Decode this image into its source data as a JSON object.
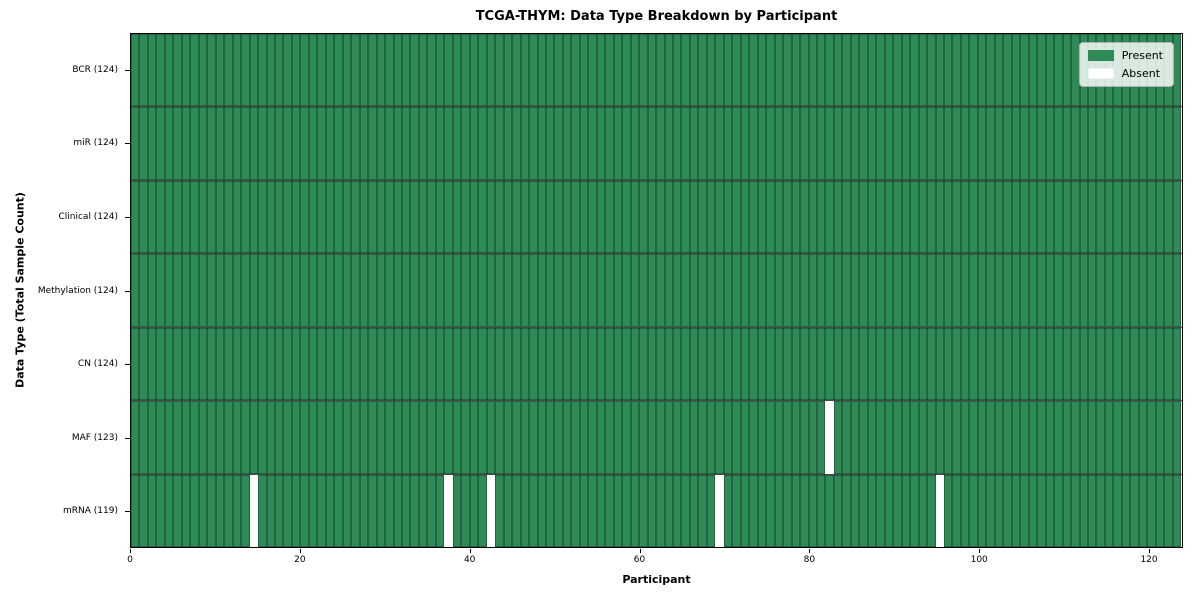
{
  "chart_data": {
    "type": "heatmap",
    "title": "TCGA-THYM: Data Type Breakdown by Participant",
    "xlabel": "Participant",
    "ylabel": "Data Type (Total Sample Count)",
    "x_range": [
      0,
      124
    ],
    "x_ticks": [
      0,
      20,
      40,
      60,
      80,
      100,
      120
    ],
    "n_participants": 124,
    "grid": true,
    "rows": [
      {
        "data_type": "BCR",
        "label": "BCR (124)",
        "total_samples": 124,
        "absent_participants": []
      },
      {
        "data_type": "miR",
        "label": "miR (124)",
        "total_samples": 124,
        "absent_participants": []
      },
      {
        "data_type": "Clinical",
        "label": "Clinical (124)",
        "total_samples": 124,
        "absent_participants": []
      },
      {
        "data_type": "Methylation",
        "label": "Methylation (124)",
        "total_samples": 124,
        "absent_participants": []
      },
      {
        "data_type": "CN",
        "label": "CN (124)",
        "total_samples": 124,
        "absent_participants": []
      },
      {
        "data_type": "MAF",
        "label": "MAF (123)",
        "total_samples": 123,
        "absent_participants": [
          82
        ]
      },
      {
        "data_type": "mRNA",
        "label": "mRNA (119)",
        "total_samples": 119,
        "absent_participants": [
          14,
          37,
          42,
          69,
          95
        ]
      }
    ],
    "legend": {
      "position": "upper right",
      "items": [
        {
          "label": "Present",
          "color": "#2e8b57"
        },
        {
          "label": "Absent",
          "color": "#ffffff"
        }
      ]
    },
    "colors": {
      "present": "#2e8b57",
      "absent": "#ffffff",
      "cell_border": "rgba(0,0,0,0.55)",
      "row_separator": "rgba(0,0,0,0.72)",
      "axis": "#000000"
    }
  }
}
